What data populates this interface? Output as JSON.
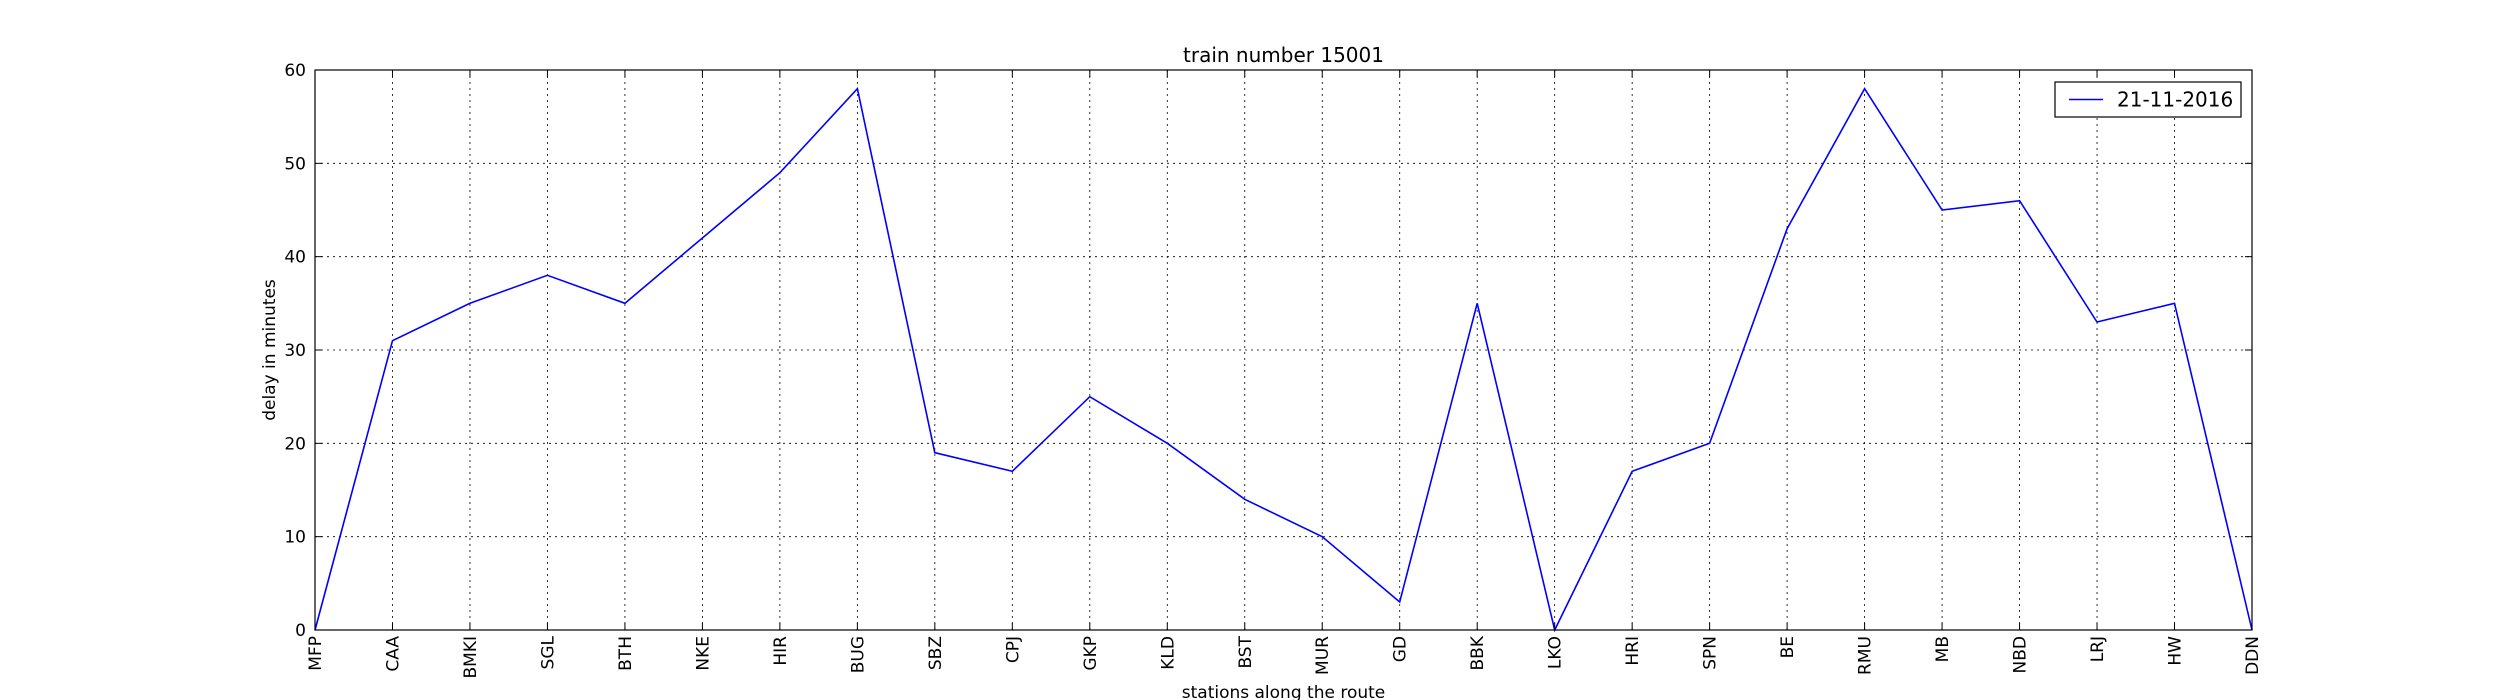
{
  "chart_data": {
    "type": "line",
    "title": "train number 15001",
    "xlabel": "stations along the route",
    "ylabel": "delay in minutes",
    "categories": [
      "MFP",
      "CAA",
      "BMKI",
      "SGL",
      "BTH",
      "NKE",
      "HIR",
      "BUG",
      "SBZ",
      "CPJ",
      "GKP",
      "KLD",
      "BST",
      "MUR",
      "GD",
      "BBK",
      "LKO",
      "HRI",
      "SPN",
      "BE",
      "RMU",
      "MB",
      "NBD",
      "LRJ",
      "HW",
      "DDN"
    ],
    "series": [
      {
        "name": "21-11-2016",
        "color": "#0000ff",
        "values": [
          0,
          31,
          35,
          38,
          35,
          42,
          49,
          58,
          19,
          17,
          25,
          20,
          14,
          10,
          3,
          35,
          0,
          17,
          20,
          43,
          58,
          45,
          46,
          33,
          35,
          0
        ]
      }
    ],
    "ylim": [
      0,
      60
    ],
    "yticks": [
      0,
      10,
      20,
      30,
      40,
      50,
      60
    ],
    "grid": true,
    "legend_position": "top-right"
  }
}
